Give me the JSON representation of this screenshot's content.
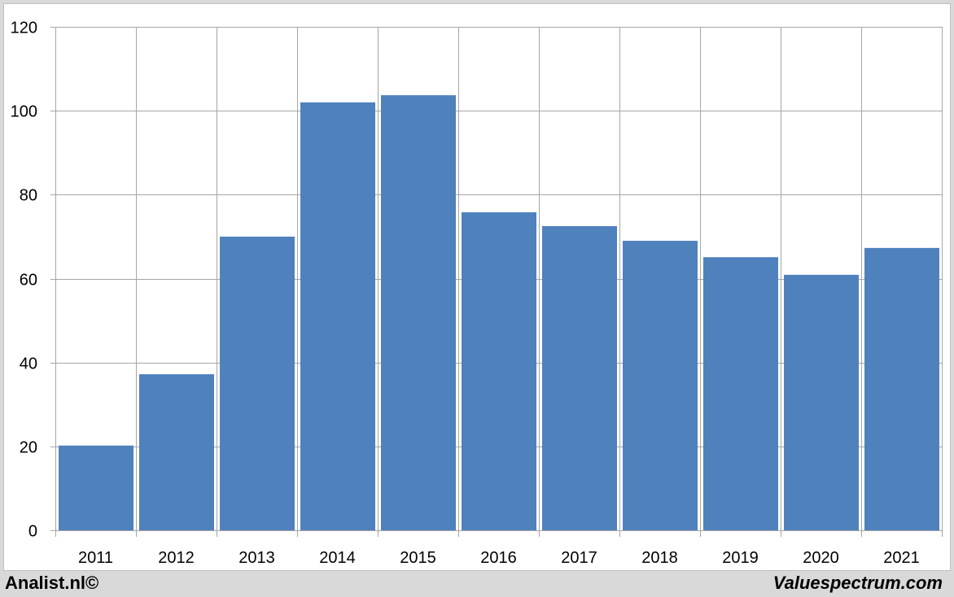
{
  "chart_data": {
    "type": "bar",
    "categories": [
      "2011",
      "2012",
      "2013",
      "2014",
      "2015",
      "2016",
      "2017",
      "2018",
      "2019",
      "2020",
      "2021"
    ],
    "values": [
      20.2,
      37.2,
      70,
      102,
      103.7,
      75.8,
      72.5,
      69,
      65.1,
      60.9,
      67.3
    ],
    "ylim": [
      0,
      120
    ],
    "yticks": [
      0,
      20,
      40,
      60,
      80,
      100,
      120
    ],
    "grid": true,
    "bar_color": "#4f81bd",
    "grid_color": "#a6a6a6"
  },
  "footer": {
    "left": "Analist.nl©",
    "right": "Valuespectrum.com"
  }
}
